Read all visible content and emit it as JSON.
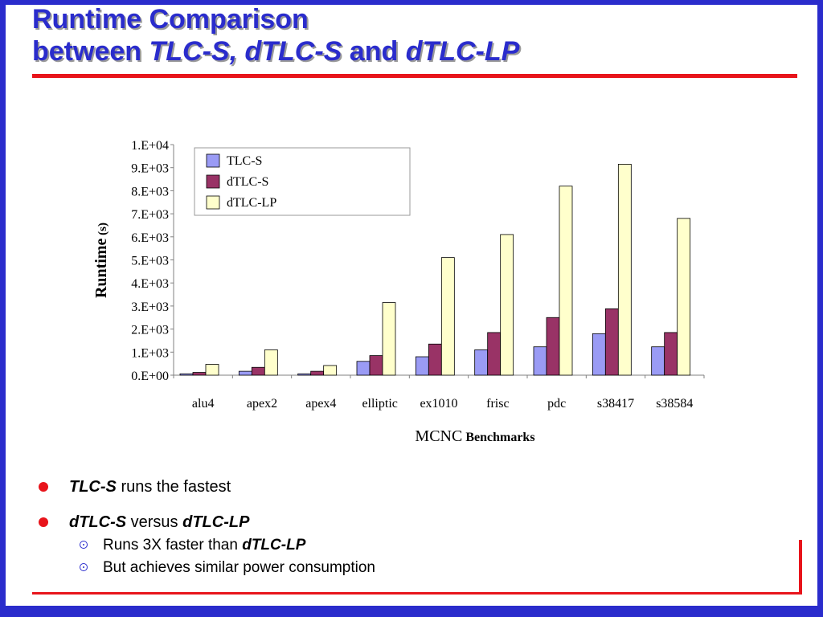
{
  "slide": {
    "title_line1": "Runtime Comparison",
    "title_line2_prefix": "between ",
    "title_line2_m1": "TLC-S,",
    "title_line2_m2": "dTLC-S",
    "title_line2_and": " and ",
    "title_line2_m3": "dTLC-LP",
    "colors": {
      "frame": "#2a2ccc",
      "title": "#2a2ccc",
      "rule": "#e8141b",
      "bullet": "#e8141b"
    }
  },
  "bullets": [
    {
      "em": "TLC-S",
      "text": " runs the fastest"
    },
    {
      "em1": "dTLC-S",
      "mid": " versus ",
      "em2": "dTLC-LP"
    }
  ],
  "sub_bullets": [
    {
      "text": "Runs 3X faster than ",
      "em": "dTLC-LP"
    },
    {
      "text": "But achieves similar power consumption"
    }
  ],
  "chart_data": {
    "type": "bar",
    "categories": [
      "alu4",
      "apex2",
      "apex4",
      "elliptic",
      "ex1010",
      "frisc",
      "pdc",
      "s38417",
      "s38584"
    ],
    "series": [
      {
        "name": "TLC-S",
        "color": "#9a9bf5",
        "values": [
          60,
          170,
          60,
          600,
          800,
          1100,
          1230,
          1800,
          1230
        ]
      },
      {
        "name": "dTLC-S",
        "color": "#993366",
        "values": [
          120,
          340,
          170,
          850,
          1350,
          1850,
          2500,
          2880,
          1850
        ]
      },
      {
        "name": "dTLC-LP",
        "color": "#ffffcc",
        "values": [
          470,
          1100,
          420,
          3150,
          5100,
          6100,
          8200,
          9150,
          6800
        ]
      }
    ],
    "y_ticks": [
      "0.E+00",
      "1.E+03",
      "2.E+03",
      "3.E+03",
      "4.E+03",
      "5.E+03",
      "6.E+03",
      "7.E+03",
      "8.E+03",
      "9.E+03",
      "1.E+04"
    ],
    "ylim": [
      0,
      10000
    ],
    "ylabel_main": "Runtime",
    "ylabel_unit": " (s)",
    "xlabel_main": "MCNC",
    "xlabel_unit": " Benchmarks",
    "legend": "top-left inside plot",
    "grid": false
  }
}
